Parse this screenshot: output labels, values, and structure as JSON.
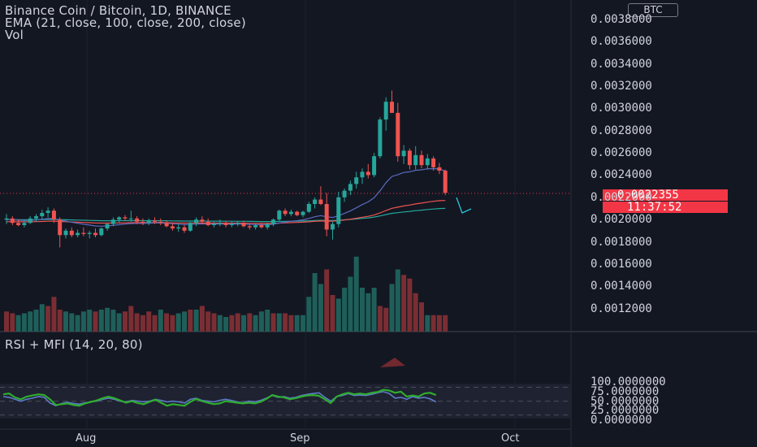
{
  "header": {
    "symbol_line": "Binance Coin / Bitcoin, 1D, BINANCE",
    "ema_line": "EMA (21, close, 100, close, 200, close)",
    "vol_line": "Vol",
    "rsi_line": "RSI + MFI (14, 20, 80)",
    "currency_button": "BTC"
  },
  "price_tag": {
    "price": "0.0022355",
    "countdown": "11:37:52",
    "color": "#f23645"
  },
  "colors": {
    "up": "#26a69a",
    "down": "#ef5350",
    "background": "#131722",
    "ema21": "#5b6bbf",
    "ema100": "#ef5350",
    "ema200": "#26a69a",
    "rsi": "#5d7bc9",
    "mfi": "#2eac2e",
    "annotation": "#26c6da"
  },
  "chart_data": [
    {
      "type": "candlestick",
      "title": "Binance Coin / Bitcoin, 1D, BINANCE",
      "x_tick_labels": [
        "Aug",
        "Sep",
        "Oct"
      ],
      "y_tick_labels": [
        "0.0038000",
        "0.0036000",
        "0.0034000",
        "0.0032000",
        "0.0030000",
        "0.0028000",
        "0.0026000",
        "0.0024000",
        "0.0022000",
        "0.0020000",
        "0.0018000",
        "0.0016000",
        "0.0014000",
        "0.0012000"
      ],
      "ylim": [
        0.00105,
        0.00395
      ],
      "last_price": 0.0022355,
      "candles": [
        [
          0.002,
          0.00205,
          0.00196,
          0.00201
        ],
        [
          0.00201,
          0.00203,
          0.00195,
          0.00197
        ],
        [
          0.00197,
          0.002,
          0.00194,
          0.00195
        ],
        [
          0.00195,
          0.00199,
          0.00193,
          0.00197
        ],
        [
          0.00197,
          0.00203,
          0.00196,
          0.00201
        ],
        [
          0.00201,
          0.00205,
          0.00198,
          0.00203
        ],
        [
          0.00203,
          0.00209,
          0.002,
          0.00206
        ],
        [
          0.00206,
          0.00211,
          0.00202,
          0.00208
        ],
        [
          0.00208,
          0.0021,
          0.00197,
          0.002
        ],
        [
          0.002,
          0.00202,
          0.00175,
          0.00186
        ],
        [
          0.00186,
          0.00192,
          0.00183,
          0.0019
        ],
        [
          0.0019,
          0.00193,
          0.00184,
          0.00186
        ],
        [
          0.00186,
          0.00191,
          0.00184,
          0.00188
        ],
        [
          0.00188,
          0.00193,
          0.00185,
          0.00187
        ],
        [
          0.00187,
          0.0019,
          0.00183,
          0.00188
        ],
        [
          0.00188,
          0.00192,
          0.00184,
          0.00186
        ],
        [
          0.00186,
          0.00193,
          0.00185,
          0.00192
        ],
        [
          0.00192,
          0.00197,
          0.0019,
          0.00196
        ],
        [
          0.00196,
          0.00202,
          0.00194,
          0.002
        ],
        [
          0.002,
          0.00203,
          0.00197,
          0.00202
        ],
        [
          0.00202,
          0.00204,
          0.00199,
          0.00201
        ],
        [
          0.00201,
          0.00208,
          0.00198,
          0.00201
        ],
        [
          0.00201,
          0.00203,
          0.00196,
          0.00198
        ],
        [
          0.00198,
          0.00201,
          0.00195,
          0.00197
        ],
        [
          0.00197,
          0.00201,
          0.00195,
          0.00199
        ],
        [
          0.00199,
          0.00202,
          0.00196,
          0.00198
        ],
        [
          0.00198,
          0.00201,
          0.00195,
          0.00197
        ],
        [
          0.00197,
          0.00199,
          0.00193,
          0.00194
        ],
        [
          0.00194,
          0.00197,
          0.0019,
          0.00192
        ],
        [
          0.00192,
          0.00196,
          0.00189,
          0.00193
        ],
        [
          0.00193,
          0.00195,
          0.00188,
          0.0019
        ],
        [
          0.0019,
          0.00198,
          0.00189,
          0.00197
        ],
        [
          0.00197,
          0.00202,
          0.00194,
          0.002
        ],
        [
          0.002,
          0.00203,
          0.00196,
          0.00198
        ],
        [
          0.00198,
          0.00201,
          0.00194,
          0.00195
        ],
        [
          0.00195,
          0.00198,
          0.00193,
          0.00196
        ],
        [
          0.00196,
          0.002,
          0.00194,
          0.00197
        ],
        [
          0.00197,
          0.00199,
          0.00193,
          0.00195
        ],
        [
          0.00195,
          0.00198,
          0.00193,
          0.00196
        ],
        [
          0.00196,
          0.00199,
          0.00194,
          0.00197
        ],
        [
          0.00197,
          0.00199,
          0.00193,
          0.00194
        ],
        [
          0.00194,
          0.00196,
          0.00191,
          0.00193
        ],
        [
          0.00193,
          0.00196,
          0.00191,
          0.00195
        ],
        [
          0.00195,
          0.00197,
          0.00192,
          0.00193
        ],
        [
          0.00193,
          0.00197,
          0.00191,
          0.00196
        ],
        [
          0.00196,
          0.00201,
          0.00194,
          0.002
        ],
        [
          0.002,
          0.00209,
          0.00199,
          0.00208
        ],
        [
          0.00208,
          0.0021,
          0.00203,
          0.00205
        ],
        [
          0.00205,
          0.00209,
          0.00203,
          0.00207
        ],
        [
          0.00207,
          0.00208,
          0.00203,
          0.00204
        ],
        [
          0.00204,
          0.00208,
          0.00202,
          0.00207
        ],
        [
          0.00207,
          0.00216,
          0.00206,
          0.00214
        ],
        [
          0.00214,
          0.0022,
          0.0021,
          0.00218
        ],
        [
          0.00218,
          0.0023,
          0.00213,
          0.00214
        ],
        [
          0.00214,
          0.00224,
          0.00185,
          0.00191
        ],
        [
          0.00191,
          0.00198,
          0.00182,
          0.00196
        ],
        [
          0.00196,
          0.00225,
          0.00193,
          0.0022
        ],
        [
          0.0022,
          0.00228,
          0.00216,
          0.00226
        ],
        [
          0.00226,
          0.00235,
          0.00222,
          0.00232
        ],
        [
          0.00232,
          0.00243,
          0.00228,
          0.00238
        ],
        [
          0.00238,
          0.00246,
          0.00232,
          0.00243
        ],
        [
          0.00243,
          0.0025,
          0.00237,
          0.0024
        ],
        [
          0.0024,
          0.0026,
          0.00238,
          0.00257
        ],
        [
          0.00257,
          0.00292,
          0.00255,
          0.0029
        ],
        [
          0.0029,
          0.0031,
          0.0028,
          0.00306
        ],
        [
          0.00306,
          0.00316,
          0.00296,
          0.00296
        ],
        [
          0.00296,
          0.00305,
          0.00252,
          0.00257
        ],
        [
          0.00257,
          0.00267,
          0.0025,
          0.00262
        ],
        [
          0.00262,
          0.00264,
          0.00245,
          0.00249
        ],
        [
          0.00249,
          0.00266,
          0.00245,
          0.00258
        ],
        [
          0.00258,
          0.00262,
          0.00246,
          0.00249
        ],
        [
          0.00249,
          0.00259,
          0.00245,
          0.00255
        ],
        [
          0.00255,
          0.00257,
          0.00244,
          0.00247
        ],
        [
          0.00247,
          0.00251,
          0.00241,
          0.00244
        ],
        [
          0.00244,
          0.00245,
          0.00222,
          0.00224
        ]
      ],
      "volume": [
        [
          0.55,
          0
        ],
        [
          0.5,
          0
        ],
        [
          0.45,
          1
        ],
        [
          0.5,
          1
        ],
        [
          0.55,
          1
        ],
        [
          0.6,
          1
        ],
        [
          0.75,
          1
        ],
        [
          0.7,
          0
        ],
        [
          0.95,
          0
        ],
        [
          0.6,
          0
        ],
        [
          0.55,
          1
        ],
        [
          0.5,
          1
        ],
        [
          0.45,
          1
        ],
        [
          0.55,
          1
        ],
        [
          0.6,
          1
        ],
        [
          0.55,
          0
        ],
        [
          0.6,
          1
        ],
        [
          0.65,
          1
        ],
        [
          0.6,
          1
        ],
        [
          0.5,
          1
        ],
        [
          0.55,
          0
        ],
        [
          0.7,
          0
        ],
        [
          0.5,
          0
        ],
        [
          0.45,
          0
        ],
        [
          0.55,
          0
        ],
        [
          0.45,
          0
        ],
        [
          0.6,
          1
        ],
        [
          0.5,
          0
        ],
        [
          0.45,
          0
        ],
        [
          0.5,
          1
        ],
        [
          0.55,
          1
        ],
        [
          0.6,
          0
        ],
        [
          0.6,
          1
        ],
        [
          0.7,
          0
        ],
        [
          0.55,
          0
        ],
        [
          0.5,
          0
        ],
        [
          0.45,
          1
        ],
        [
          0.4,
          1
        ],
        [
          0.45,
          0
        ],
        [
          0.5,
          0
        ],
        [
          0.45,
          1
        ],
        [
          0.5,
          0
        ],
        [
          0.45,
          1
        ],
        [
          0.55,
          1
        ],
        [
          0.6,
          1
        ],
        [
          0.5,
          0
        ],
        [
          0.5,
          1
        ],
        [
          0.5,
          0
        ],
        [
          0.45,
          0
        ],
        [
          0.45,
          1
        ],
        [
          0.45,
          1
        ],
        [
          0.95,
          1
        ],
        [
          1.6,
          1
        ],
        [
          1.3,
          1
        ],
        [
          1.7,
          0
        ],
        [
          1.0,
          0
        ],
        [
          0.9,
          1
        ],
        [
          1.2,
          1
        ],
        [
          1.5,
          1
        ],
        [
          2.05,
          1
        ],
        [
          1.2,
          1
        ],
        [
          1.05,
          1
        ],
        [
          1.2,
          1
        ],
        [
          0.7,
          0
        ],
        [
          0.65,
          0
        ],
        [
          1.3,
          1
        ],
        [
          1.7,
          1
        ],
        [
          1.55,
          0
        ],
        [
          1.45,
          0
        ],
        [
          1.05,
          0
        ],
        [
          0.8,
          0
        ],
        [
          0.45,
          1
        ],
        [
          0.45,
          0
        ],
        [
          0.45,
          0
        ],
        [
          0.45,
          0
        ]
      ],
      "ema21_end": [
        0.00205,
        0.00212,
        0.00222,
        0.00233,
        0.00241,
        0.00244,
        0.00243
      ],
      "ema100_end": 0.0021,
      "ema200_end": 0.00205
    },
    {
      "type": "line",
      "title": "RSI + MFI (14, 20, 80)",
      "y_tick_labels": [
        "100.0000000",
        "75.0000000",
        "50.0000000",
        "25.0000000",
        "0.0000000"
      ],
      "ylim": [
        0,
        100
      ],
      "band": [
        20,
        80
      ],
      "series": [
        {
          "name": "RSI",
          "values": [
            62,
            60,
            55,
            50,
            55,
            58,
            62,
            60,
            45,
            38,
            44,
            47,
            44,
            42,
            46,
            48,
            50,
            55,
            58,
            55,
            50,
            48,
            52,
            50,
            48,
            50,
            55,
            52,
            48,
            50,
            48,
            45,
            55,
            58,
            52,
            50,
            48,
            52,
            55,
            52,
            48,
            46,
            50,
            48,
            52,
            58,
            65,
            60,
            62,
            58,
            60,
            65,
            68,
            70,
            72,
            60,
            50,
            62,
            65,
            70,
            65,
            66,
            65,
            68,
            72,
            75,
            70,
            58,
            60,
            55,
            62,
            58,
            60,
            56,
            48
          ]
        },
        {
          "name": "MFI",
          "values": [
            68,
            70,
            60,
            55,
            62,
            65,
            68,
            66,
            55,
            40,
            42,
            44,
            40,
            38,
            44,
            48,
            52,
            58,
            62,
            58,
            52,
            46,
            50,
            45,
            42,
            48,
            54,
            46,
            38,
            42,
            40,
            38,
            48,
            56,
            50,
            46,
            42,
            44,
            50,
            48,
            46,
            44,
            46,
            44,
            48,
            56,
            66,
            62,
            60,
            55,
            58,
            62,
            65,
            66,
            64,
            55,
            45,
            62,
            68,
            72,
            68,
            70,
            68,
            72,
            74,
            80,
            78,
            72,
            75,
            62,
            65,
            62,
            70,
            72,
            66
          ]
        }
      ]
    }
  ]
}
